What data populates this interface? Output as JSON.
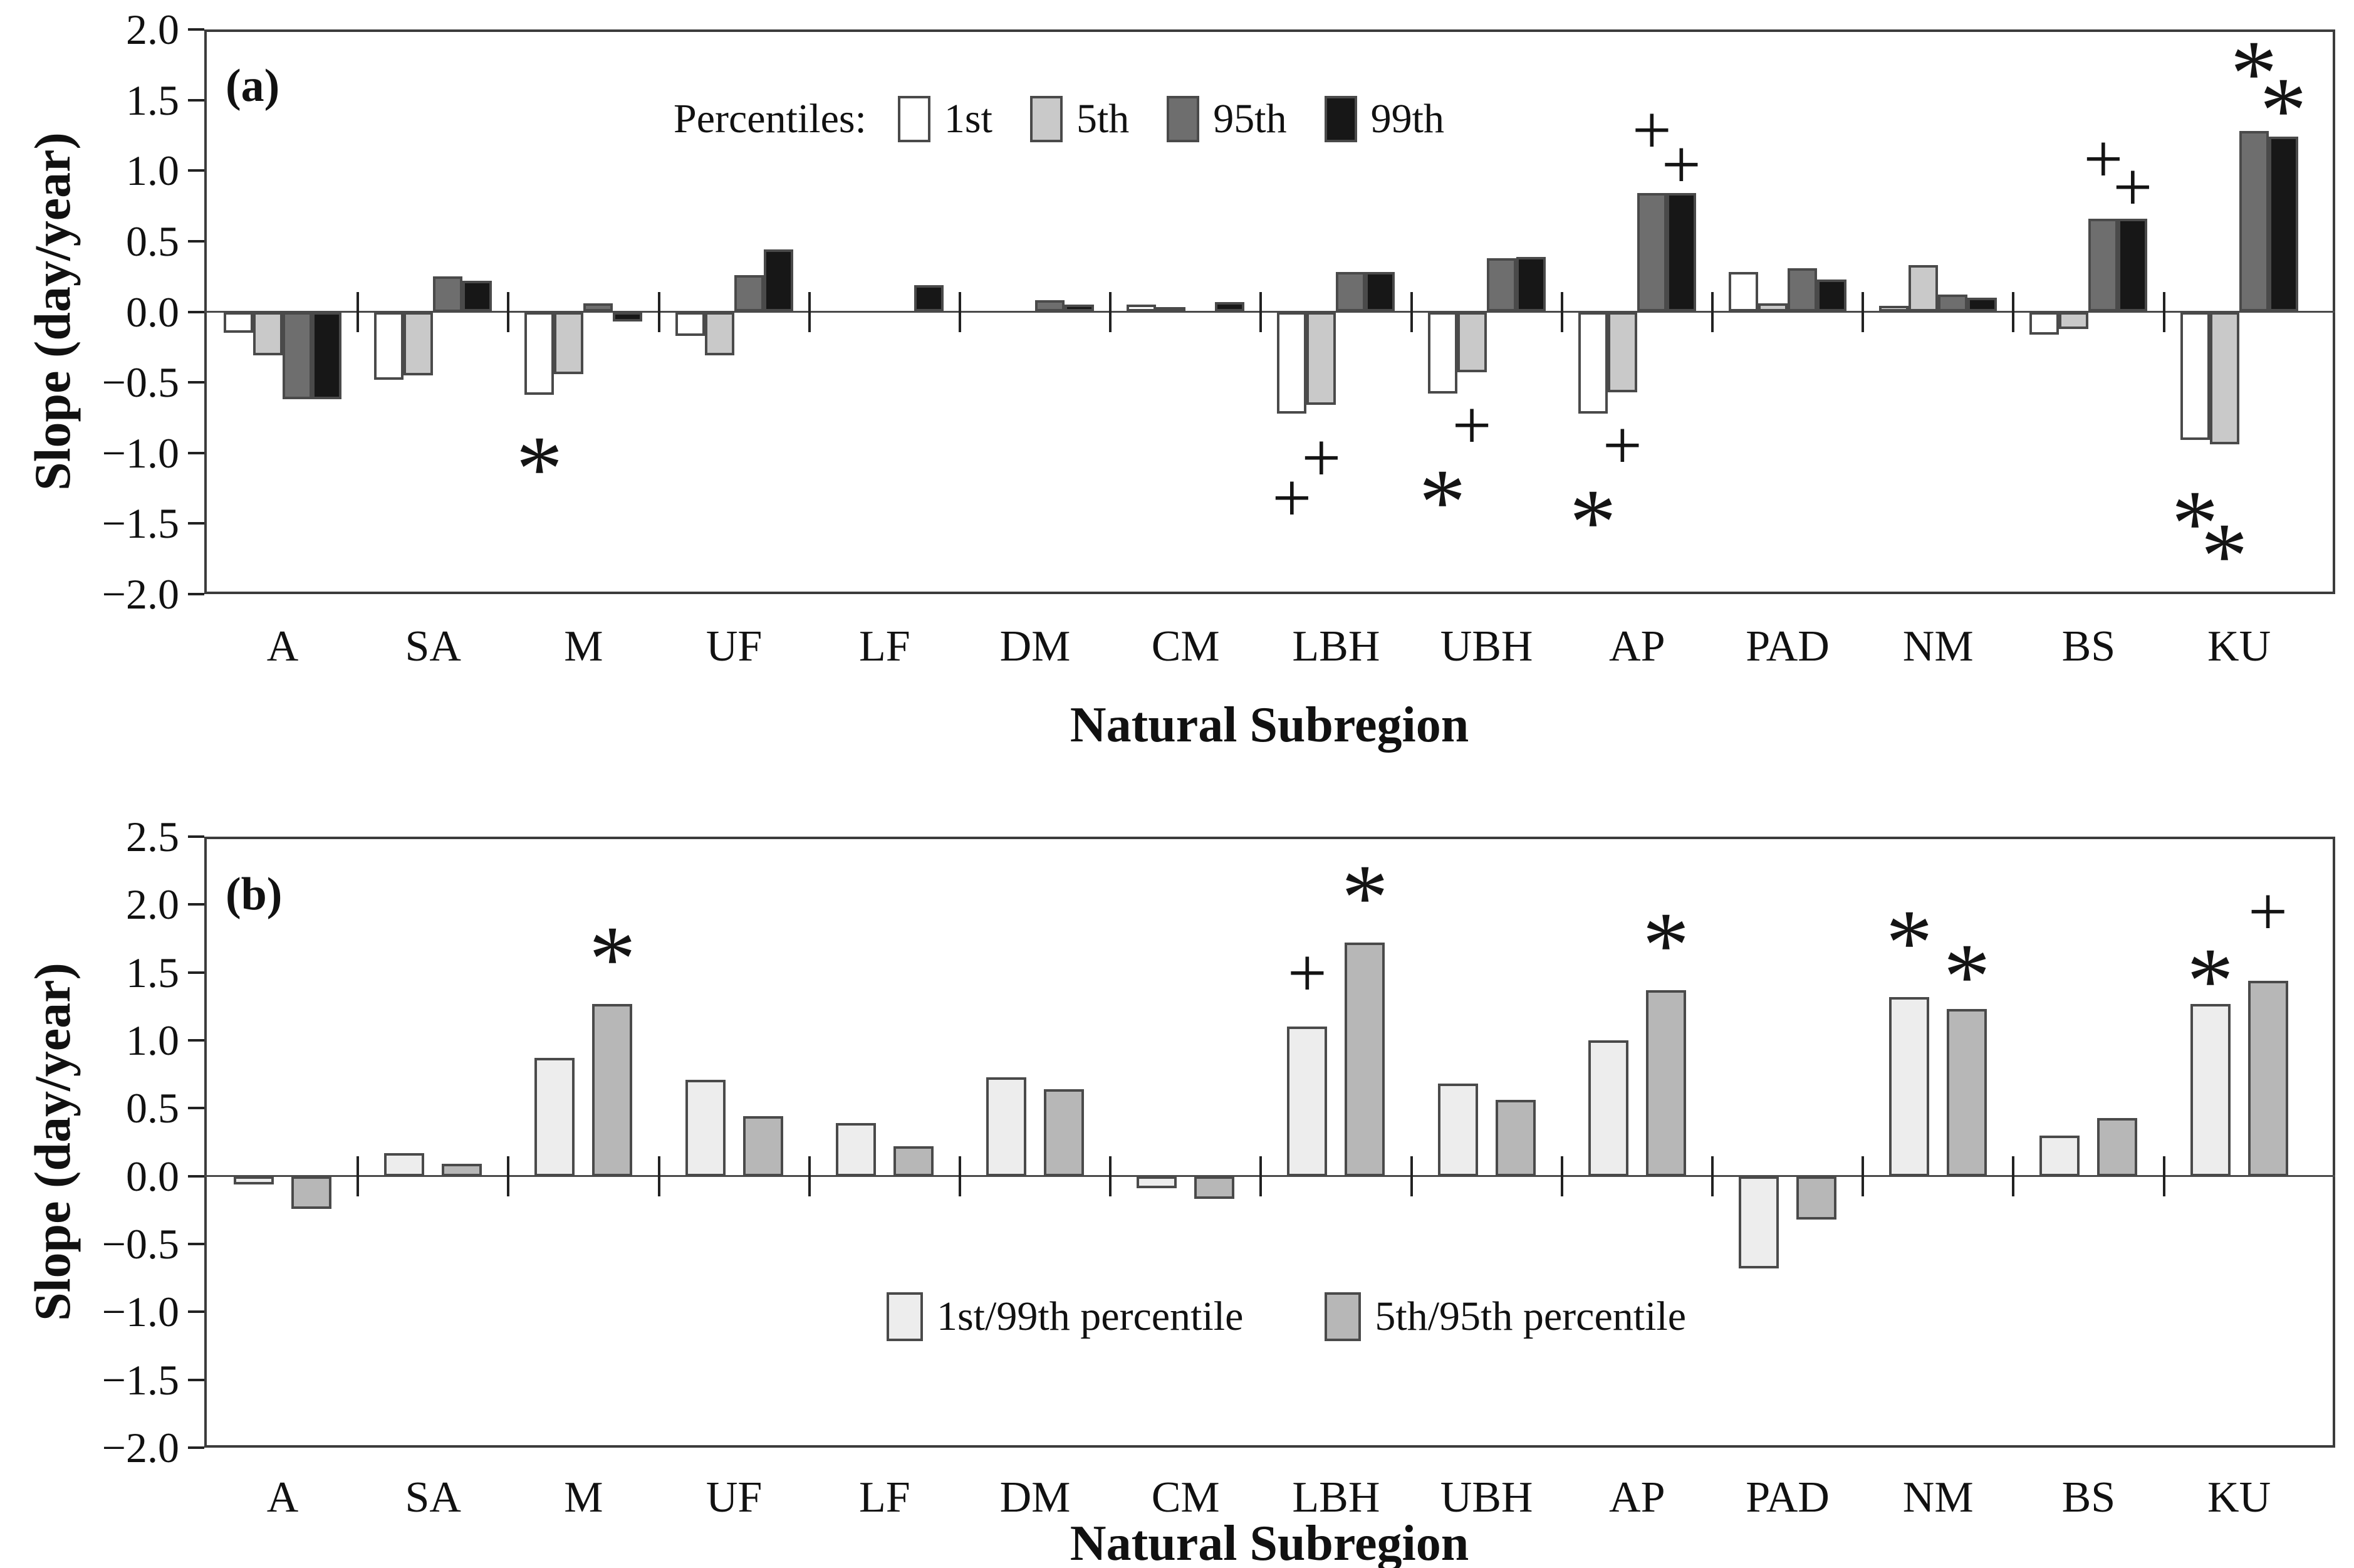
{
  "figure": {
    "y_axis_title": "Slope (day/year)",
    "x_axis_title": "Natural Subregion"
  },
  "chart_data": [
    {
      "type": "bar",
      "panel_label": "(a)",
      "xlabel": "Natural Subregion",
      "ylabel": "Slope (day/year)",
      "ylim": [
        -2.0,
        2.0
      ],
      "ytick_values": [
        2.0,
        1.5,
        1.0,
        0.5,
        0.0,
        -0.5,
        -1.0,
        -1.5,
        -2.0
      ],
      "yticklabels": [
        "2.0",
        "1.5",
        "1.0",
        "0.5",
        "0.0",
        "−0.5",
        "−1.0",
        "−1.5",
        "−2.0"
      ],
      "grid": false,
      "legend_position": "top-center-inside",
      "legend_intro": "Percentiles:",
      "categories": [
        "A",
        "SA",
        "M",
        "UF",
        "LF",
        "DM",
        "CM",
        "LBH",
        "UBH",
        "AP",
        "PAD",
        "NM",
        "BS",
        "KU"
      ],
      "series": [
        {
          "name": "1st",
          "color": "#ffffff",
          "values": [
            -0.15,
            -0.48,
            -0.59,
            -0.17,
            0.0,
            0.0,
            0.05,
            -0.72,
            -0.58,
            -0.72,
            0.28,
            0.04,
            -0.16,
            -0.91
          ]
        },
        {
          "name": "5th",
          "color": "#c9c9c9",
          "values": [
            -0.31,
            -0.45,
            -0.44,
            -0.31,
            0.0,
            0.0,
            0.02,
            -0.66,
            -0.43,
            -0.57,
            0.06,
            0.33,
            -0.12,
            -0.94
          ]
        },
        {
          "name": "95th",
          "color": "#6e6e6e",
          "values": [
            -0.62,
            0.25,
            0.06,
            0.26,
            0.0,
            0.08,
            0.0,
            0.28,
            0.38,
            0.84,
            0.31,
            0.12,
            0.66,
            1.28
          ]
        },
        {
          "name": "99th",
          "color": "#171717",
          "values": [
            -0.62,
            0.22,
            -0.07,
            0.44,
            0.19,
            0.05,
            0.07,
            0.28,
            0.39,
            0.84,
            0.23,
            0.1,
            0.66,
            1.24
          ]
        }
      ],
      "significance_markers": [
        {
          "category": "M",
          "series": 0,
          "symbol": "*",
          "position": "below",
          "dy": 0
        },
        {
          "category": "LBH",
          "series": 0,
          "symbol": "+",
          "position": "below",
          "dy": 50
        },
        {
          "category": "LBH",
          "series": 1,
          "symbol": "+",
          "position": "below",
          "dy": 0
        },
        {
          "category": "UBH",
          "series": 0,
          "symbol": "*",
          "position": "below",
          "dy": 55
        },
        {
          "category": "UBH",
          "series": 1,
          "symbol": "+",
          "position": "below",
          "dy": 0
        },
        {
          "category": "AP",
          "series": 0,
          "symbol": "*",
          "position": "below",
          "dy": 55
        },
        {
          "category": "AP",
          "series": 1,
          "symbol": "+",
          "position": "below",
          "dy": 0
        },
        {
          "category": "AP",
          "series": 2,
          "symbol": "+",
          "position": "above",
          "dy": -15
        },
        {
          "category": "AP",
          "series": 3,
          "symbol": "+",
          "position": "above",
          "dy": 40
        },
        {
          "category": "BS",
          "series": 2,
          "symbol": "+",
          "position": "above",
          "dy": -10
        },
        {
          "category": "BS",
          "series": 3,
          "symbol": "+",
          "position": "above",
          "dy": 35
        },
        {
          "category": "KU",
          "series": 0,
          "symbol": "*",
          "position": "below",
          "dy": 15
        },
        {
          "category": "KU",
          "series": 1,
          "symbol": "*",
          "position": "below",
          "dy": 60
        },
        {
          "category": "KU",
          "series": 2,
          "symbol": "*",
          "position": "above",
          "dy": -40
        },
        {
          "category": "KU",
          "series": 3,
          "symbol": "*",
          "position": "above",
          "dy": 10
        }
      ]
    },
    {
      "type": "bar",
      "panel_label": "(b)",
      "xlabel": "Natural Subregion",
      "ylabel": "Slope (day/year)",
      "ylim": [
        -2.0,
        2.5
      ],
      "ytick_values": [
        2.5,
        2.0,
        1.5,
        1.0,
        0.5,
        0.0,
        -0.5,
        -1.0,
        -1.5,
        -2.0
      ],
      "yticklabels": [
        "2.5",
        "2.0",
        "1.5",
        "1.0",
        "0.5",
        "0.0",
        "−0.5",
        "−1.0",
        "−1.5",
        "−2.0"
      ],
      "grid": false,
      "legend_position": "bottom-center-inside",
      "legend_intro": "",
      "categories": [
        "A",
        "SA",
        "M",
        "UF",
        "LF",
        "DM",
        "CM",
        "LBH",
        "UBH",
        "AP",
        "PAD",
        "NM",
        "BS",
        "KU"
      ],
      "series": [
        {
          "name": "1st/99th percentile",
          "color": "#ededed",
          "values": [
            -0.06,
            0.17,
            0.87,
            0.71,
            0.39,
            0.73,
            -0.09,
            1.1,
            0.68,
            1.0,
            -0.68,
            1.32,
            0.3,
            1.27
          ]
        },
        {
          "name": "5th/95th percentile",
          "color": "#b7b7b7",
          "values": [
            -0.24,
            0.09,
            1.27,
            0.44,
            0.22,
            0.64,
            -0.17,
            1.72,
            0.56,
            1.37,
            -0.32,
            1.23,
            0.43,
            1.44
          ]
        }
      ],
      "significance_markers": [
        {
          "category": "M",
          "series": 1,
          "symbol": "*",
          "position": "above",
          "dy": -20
        },
        {
          "category": "LBH",
          "series": 0,
          "symbol": "+",
          "position": "above",
          "dy": 0
        },
        {
          "category": "LBH",
          "series": 1,
          "symbol": "*",
          "position": "above",
          "dy": -20
        },
        {
          "category": "AP",
          "series": 1,
          "symbol": "*",
          "position": "above",
          "dy": -20
        },
        {
          "category": "NM",
          "series": 0,
          "symbol": "*",
          "position": "above",
          "dy": -35
        },
        {
          "category": "NM",
          "series": 1,
          "symbol": "*",
          "position": "above",
          "dy": 0
        },
        {
          "category": "KU",
          "series": 0,
          "symbol": "*",
          "position": "above",
          "dy": 15
        },
        {
          "category": "KU",
          "series": 1,
          "symbol": "+",
          "position": "above",
          "dy": -25
        }
      ]
    }
  ]
}
